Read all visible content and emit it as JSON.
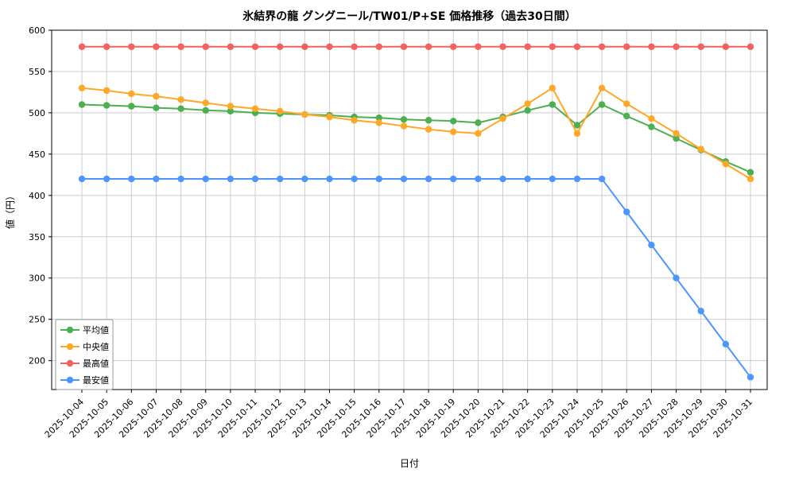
{
  "chart_data": {
    "type": "line",
    "title": "氷結界の龍 グングニール/TW01/P+SE 価格推移（過去30日間）",
    "xlabel": "日付",
    "ylabel": "値（円）",
    "grid": true,
    "legend_position": "lower left",
    "ylim": [
      165,
      600
    ],
    "yticks": [
      200,
      250,
      300,
      350,
      400,
      450,
      500,
      550,
      600
    ],
    "categories": [
      "2025-10-04",
      "2025-10-05",
      "2025-10-06",
      "2025-10-07",
      "2025-10-08",
      "2025-10-09",
      "2025-10-10",
      "2025-10-11",
      "2025-10-12",
      "2025-10-13",
      "2025-10-14",
      "2025-10-15",
      "2025-10-16",
      "2025-10-17",
      "2025-10-18",
      "2025-10-19",
      "2025-10-20",
      "2025-10-21",
      "2025-10-22",
      "2025-10-23",
      "2025-10-24",
      "2025-10-25",
      "2025-10-26",
      "2025-10-27",
      "2025-10-28",
      "2025-10-29",
      "2025-10-30",
      "2025-10-31"
    ],
    "series": [
      {
        "name": "平均値",
        "color": "#4CAF50",
        "values": [
          510,
          509,
          508,
          506,
          505,
          503,
          502,
          500,
          499,
          498,
          497,
          495,
          494,
          492,
          491,
          490,
          488,
          495,
          503,
          510,
          485,
          510,
          496,
          483,
          469,
          455,
          441,
          428
        ]
      },
      {
        "name": "中央値",
        "color": "#FFA726",
        "values": [
          530,
          527,
          523,
          520,
          516,
          512,
          508,
          505,
          502,
          498,
          495,
          491,
          488,
          484,
          480,
          477,
          475,
          493,
          511,
          530,
          475,
          530,
          511,
          493,
          475,
          456,
          438,
          420
        ]
      },
      {
        "name": "最高値",
        "color": "#F4625F",
        "values": [
          580,
          580,
          580,
          580,
          580,
          580,
          580,
          580,
          580,
          580,
          580,
          580,
          580,
          580,
          580,
          580,
          580,
          580,
          580,
          580,
          580,
          580,
          580,
          580,
          580,
          580,
          580,
          580
        ]
      },
      {
        "name": "最安値",
        "color": "#4D96FF",
        "values": [
          420,
          420,
          420,
          420,
          420,
          420,
          420,
          420,
          420,
          420,
          420,
          420,
          420,
          420,
          420,
          420,
          420,
          420,
          420,
          420,
          420,
          420,
          380,
          340,
          300,
          260,
          220,
          180
        ]
      }
    ]
  }
}
